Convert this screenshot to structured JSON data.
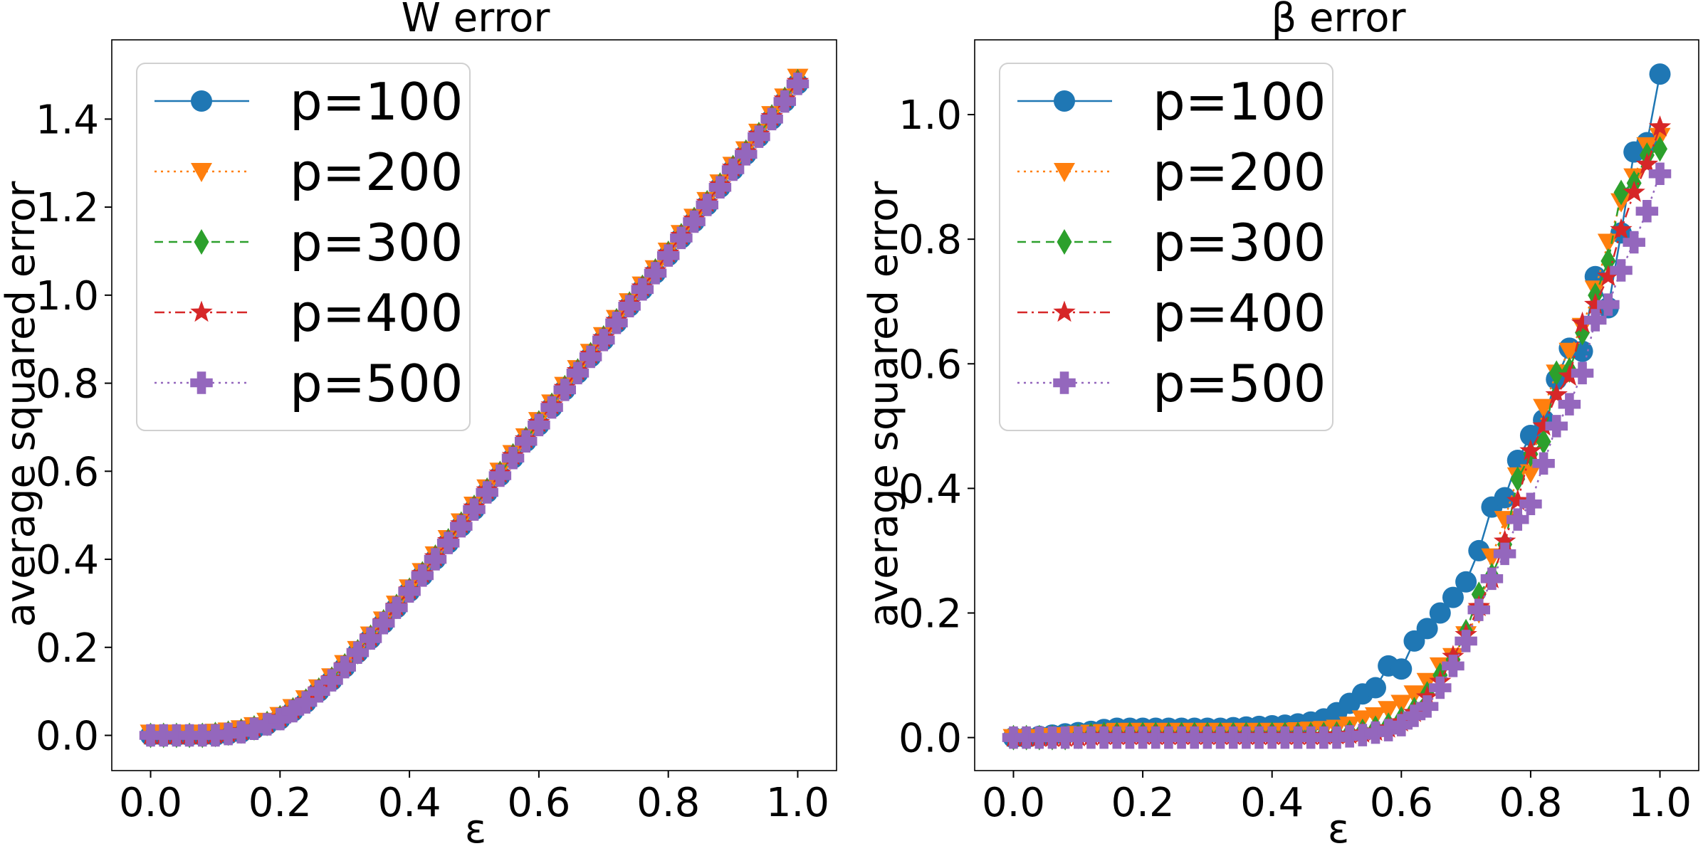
{
  "colors": {
    "p100": "#1f77b4",
    "p200": "#ff7f0e",
    "p300": "#2ca02c",
    "p400": "#d62728",
    "p500": "#9467bd"
  },
  "chart_data": [
    {
      "type": "line",
      "title": "W error",
      "xlabel": "ε",
      "ylabel": "average squared error",
      "xlim": [
        -0.06,
        1.06
      ],
      "ylim": [
        -0.08,
        1.58
      ],
      "xticks": [
        "0.0",
        "0.2",
        "0.4",
        "0.6",
        "0.8",
        "1.0"
      ],
      "yticks": [
        "0.0",
        "0.2",
        "0.4",
        "0.6",
        "0.8",
        "1.0",
        "1.2",
        "1.4"
      ],
      "grid": false,
      "legend": "top-left",
      "x": [
        0.0,
        0.02,
        0.04,
        0.06,
        0.08,
        0.1,
        0.12,
        0.14,
        0.16,
        0.18,
        0.2,
        0.22,
        0.24,
        0.26,
        0.28,
        0.3,
        0.32,
        0.34,
        0.36,
        0.38,
        0.4,
        0.42,
        0.44,
        0.46,
        0.48,
        0.5,
        0.52,
        0.54,
        0.56,
        0.58,
        0.6,
        0.62,
        0.64,
        0.66,
        0.68,
        0.7,
        0.72,
        0.74,
        0.76,
        0.78,
        0.8,
        0.82,
        0.84,
        0.86,
        0.88,
        0.9,
        0.92,
        0.94,
        0.96,
        0.98,
        1.0
      ],
      "series": [
        {
          "name": "p=100",
          "marker": "circle",
          "linestyle": "solid",
          "values": [
            0.0,
            0.0,
            0.0,
            0.0,
            0.0,
            0.0,
            0.003,
            0.007,
            0.015,
            0.025,
            0.037,
            0.055,
            0.075,
            0.1,
            0.125,
            0.155,
            0.188,
            0.22,
            0.255,
            0.29,
            0.327,
            0.363,
            0.4,
            0.437,
            0.475,
            0.513,
            0.552,
            0.59,
            0.63,
            0.668,
            0.705,
            0.745,
            0.785,
            0.823,
            0.86,
            0.898,
            0.937,
            0.975,
            1.013,
            1.05,
            1.09,
            1.13,
            1.167,
            1.205,
            1.245,
            1.285,
            1.32,
            1.36,
            1.4,
            1.44,
            1.48
          ]
        },
        {
          "name": "p=200",
          "marker": "triangle_down",
          "linestyle": "dotted",
          "values": [
            0.005,
            0.005,
            0.005,
            0.005,
            0.005,
            0.007,
            0.01,
            0.015,
            0.022,
            0.032,
            0.045,
            0.063,
            0.083,
            0.108,
            0.133,
            0.163,
            0.195,
            0.228,
            0.262,
            0.298,
            0.335,
            0.372,
            0.41,
            0.447,
            0.485,
            0.523,
            0.562,
            0.6,
            0.64,
            0.678,
            0.715,
            0.755,
            0.795,
            0.833,
            0.87,
            0.908,
            0.947,
            0.985,
            1.023,
            1.06,
            1.1,
            1.14,
            1.177,
            1.215,
            1.255,
            1.295,
            1.33,
            1.37,
            1.41,
            1.45,
            1.495
          ]
        },
        {
          "name": "p=300",
          "marker": "diamond",
          "linestyle": "dashed",
          "values": [
            0.0,
            0.0,
            0.0,
            0.0,
            0.0,
            0.002,
            0.005,
            0.01,
            0.017,
            0.027,
            0.04,
            0.058,
            0.078,
            0.103,
            0.128,
            0.158,
            0.19,
            0.223,
            0.258,
            0.293,
            0.33,
            0.367,
            0.405,
            0.442,
            0.48,
            0.518,
            0.557,
            0.595,
            0.635,
            0.673,
            0.71,
            0.75,
            0.79,
            0.828,
            0.865,
            0.903,
            0.942,
            0.98,
            1.018,
            1.055,
            1.095,
            1.135,
            1.172,
            1.21,
            1.25,
            1.29,
            1.325,
            1.365,
            1.405,
            1.445,
            1.485
          ]
        },
        {
          "name": "p=400",
          "marker": "star",
          "linestyle": "dashdot",
          "values": [
            0.0,
            0.0,
            0.0,
            0.0,
            0.0,
            0.002,
            0.005,
            0.01,
            0.017,
            0.027,
            0.04,
            0.058,
            0.078,
            0.103,
            0.128,
            0.158,
            0.19,
            0.223,
            0.258,
            0.293,
            0.33,
            0.367,
            0.405,
            0.442,
            0.48,
            0.518,
            0.557,
            0.595,
            0.635,
            0.673,
            0.71,
            0.75,
            0.79,
            0.828,
            0.865,
            0.903,
            0.942,
            0.98,
            1.018,
            1.055,
            1.095,
            1.135,
            1.172,
            1.21,
            1.25,
            1.29,
            1.325,
            1.365,
            1.405,
            1.445,
            1.485
          ]
        },
        {
          "name": "p=500",
          "marker": "plus",
          "linestyle": "dotted",
          "values": [
            0.0,
            0.0,
            0.0,
            0.0,
            0.0,
            0.0,
            0.003,
            0.007,
            0.015,
            0.025,
            0.037,
            0.055,
            0.075,
            0.1,
            0.125,
            0.155,
            0.188,
            0.22,
            0.255,
            0.29,
            0.327,
            0.363,
            0.4,
            0.437,
            0.475,
            0.513,
            0.552,
            0.59,
            0.63,
            0.668,
            0.705,
            0.745,
            0.785,
            0.823,
            0.86,
            0.898,
            0.937,
            0.975,
            1.013,
            1.05,
            1.09,
            1.13,
            1.167,
            1.205,
            1.245,
            1.285,
            1.32,
            1.36,
            1.4,
            1.44,
            1.48
          ]
        }
      ]
    },
    {
      "type": "line",
      "title": "β error",
      "xlabel": "ε",
      "ylabel": "average squared error",
      "xlim": [
        -0.06,
        1.06
      ],
      "ylim": [
        -0.053,
        1.12
      ],
      "xticks": [
        "0.0",
        "0.2",
        "0.4",
        "0.6",
        "0.8",
        "1.0"
      ],
      "yticks": [
        "0.0",
        "0.2",
        "0.4",
        "0.6",
        "0.8",
        "1.0"
      ],
      "grid": false,
      "legend": "top-left",
      "x": [
        0.0,
        0.02,
        0.04,
        0.06,
        0.08,
        0.1,
        0.12,
        0.14,
        0.16,
        0.18,
        0.2,
        0.22,
        0.24,
        0.26,
        0.28,
        0.3,
        0.32,
        0.34,
        0.36,
        0.38,
        0.4,
        0.42,
        0.44,
        0.46,
        0.48,
        0.5,
        0.52,
        0.54,
        0.56,
        0.58,
        0.6,
        0.62,
        0.64,
        0.66,
        0.68,
        0.7,
        0.72,
        0.74,
        0.76,
        0.78,
        0.8,
        0.82,
        0.84,
        0.86,
        0.88,
        0.9,
        0.92,
        0.94,
        0.96,
        0.98,
        1.0
      ],
      "series": [
        {
          "name": "p=100",
          "marker": "circle",
          "linestyle": "solid",
          "values": [
            0.0,
            0.0,
            0.002,
            0.004,
            0.006,
            0.008,
            0.01,
            0.013,
            0.015,
            0.015,
            0.015,
            0.015,
            0.015,
            0.015,
            0.015,
            0.015,
            0.015,
            0.016,
            0.017,
            0.018,
            0.019,
            0.02,
            0.022,
            0.025,
            0.03,
            0.04,
            0.055,
            0.07,
            0.08,
            0.115,
            0.11,
            0.155,
            0.175,
            0.2,
            0.225,
            0.25,
            0.3,
            0.37,
            0.385,
            0.445,
            0.485,
            0.51,
            0.575,
            0.625,
            0.62,
            0.74,
            0.69,
            0.81,
            0.94,
            0.955,
            1.065
          ]
        },
        {
          "name": "p=200",
          "marker": "triangle_down",
          "linestyle": "dotted",
          "values": [
            0.0,
            0.0,
            0.0,
            0.002,
            0.003,
            0.005,
            0.007,
            0.008,
            0.01,
            0.01,
            0.01,
            0.01,
            0.01,
            0.01,
            0.01,
            0.01,
            0.01,
            0.01,
            0.01,
            0.01,
            0.01,
            0.01,
            0.011,
            0.012,
            0.013,
            0.015,
            0.02,
            0.03,
            0.035,
            0.045,
            0.055,
            0.07,
            0.09,
            0.115,
            0.13,
            0.165,
            0.2,
            0.29,
            0.35,
            0.42,
            0.425,
            0.53,
            0.585,
            0.62,
            0.66,
            0.72,
            0.795,
            0.86,
            0.9,
            0.95,
            0.965
          ]
        },
        {
          "name": "p=300",
          "marker": "diamond",
          "linestyle": "dashed",
          "values": [
            0.0,
            0.0,
            0.0,
            0.0,
            0.0,
            0.002,
            0.004,
            0.005,
            0.005,
            0.005,
            0.005,
            0.005,
            0.005,
            0.005,
            0.005,
            0.005,
            0.005,
            0.005,
            0.005,
            0.005,
            0.005,
            0.005,
            0.005,
            0.005,
            0.005,
            0.006,
            0.008,
            0.01,
            0.015,
            0.02,
            0.03,
            0.045,
            0.07,
            0.1,
            0.125,
            0.17,
            0.23,
            0.26,
            0.31,
            0.415,
            0.455,
            0.475,
            0.585,
            0.59,
            0.65,
            0.71,
            0.765,
            0.875,
            0.89,
            0.935,
            0.945
          ]
        },
        {
          "name": "p=400",
          "marker": "star",
          "linestyle": "dashdot",
          "values": [
            0.0,
            0.0,
            0.0,
            0.0,
            0.0,
            0.001,
            0.002,
            0.003,
            0.003,
            0.003,
            0.003,
            0.003,
            0.003,
            0.003,
            0.003,
            0.003,
            0.003,
            0.003,
            0.003,
            0.003,
            0.003,
            0.003,
            0.003,
            0.003,
            0.003,
            0.004,
            0.005,
            0.007,
            0.01,
            0.015,
            0.025,
            0.04,
            0.065,
            0.09,
            0.13,
            0.165,
            0.21,
            0.255,
            0.315,
            0.38,
            0.46,
            0.5,
            0.55,
            0.58,
            0.665,
            0.695,
            0.74,
            0.815,
            0.875,
            0.92,
            0.98
          ]
        },
        {
          "name": "p=500",
          "marker": "plus",
          "linestyle": "dotted",
          "values": [
            0.0,
            0.0,
            0.0,
            0.0,
            0.0,
            0.0,
            0.0,
            0.0,
            0.0,
            0.0,
            0.0,
            0.0,
            0.0,
            0.0,
            0.0,
            0.0,
            0.0,
            0.0,
            0.0,
            0.0,
            0.0,
            0.0,
            0.0,
            0.0,
            0.0,
            0.0,
            0.002,
            0.004,
            0.008,
            0.012,
            0.02,
            0.035,
            0.05,
            0.08,
            0.115,
            0.155,
            0.205,
            0.255,
            0.295,
            0.35,
            0.375,
            0.44,
            0.5,
            0.535,
            0.585,
            0.67,
            0.695,
            0.75,
            0.795,
            0.845,
            0.905
          ]
        }
      ]
    }
  ]
}
